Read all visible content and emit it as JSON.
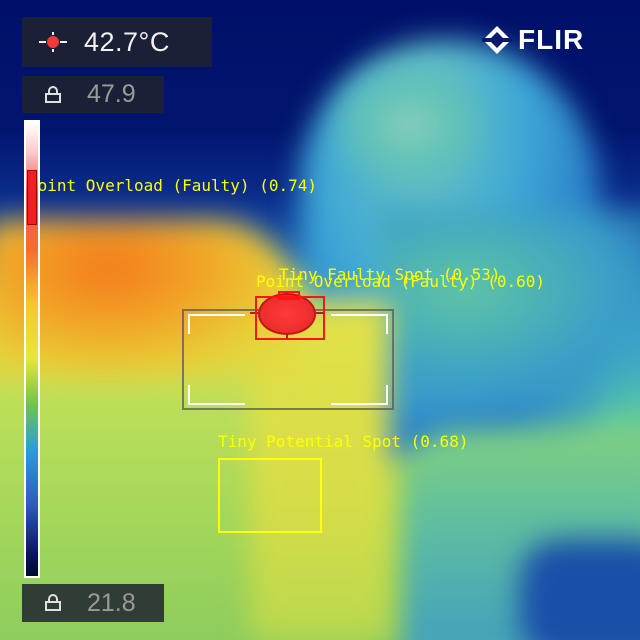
{
  "camera": {
    "temperature": "42.7°C",
    "span_max": "47.9",
    "span_min": "21.8",
    "brand": "FLIR",
    "scale_marker_fraction": 0.83
  },
  "icons": {
    "spot": "spot-meter-icon",
    "lock": "lock-icon",
    "logo": "flir-logo-icon"
  },
  "detections": [
    {
      "label": "Point Overload (Faulty) (0.74)",
      "color": "#ffff00"
    },
    {
      "label": "Tiny Faulty Spot (0.53)",
      "color": "#ff1414"
    },
    {
      "label": "Point Overload (Faulty) (0.60)",
      "color": "#ff1414"
    },
    {
      "label": "Tiny Potential Spot (0.68)",
      "color": "#ffff14"
    }
  ],
  "palette": {
    "hot": "#ef1f23",
    "box_red": "#ff1414",
    "box_yellow": "#ffff14",
    "label": "#ffff00"
  }
}
